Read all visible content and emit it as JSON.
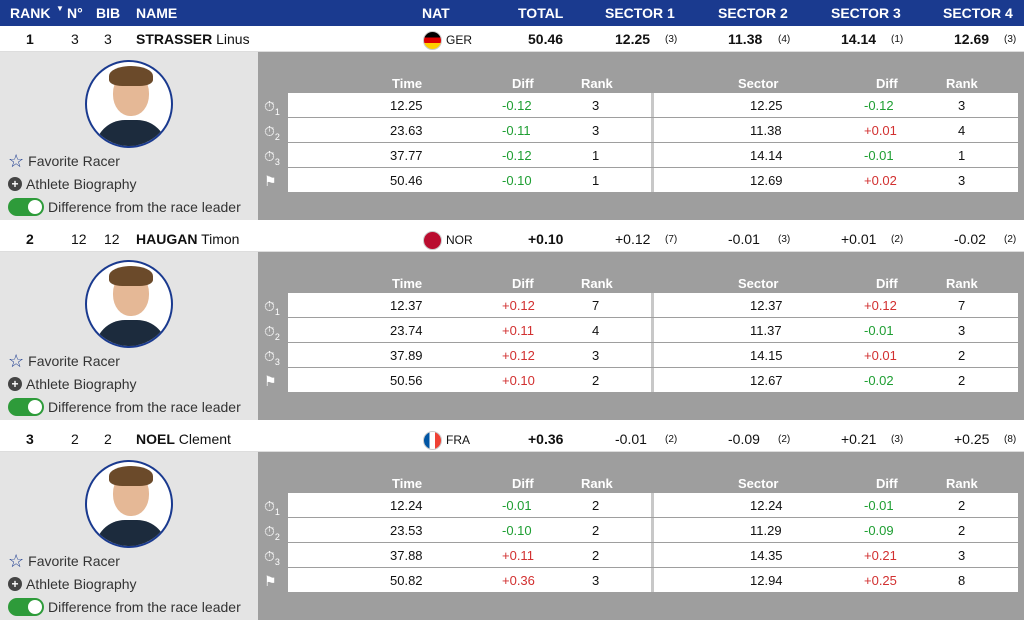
{
  "header": {
    "rank": "RANK",
    "no": "N°",
    "bib": "BIB",
    "name": "NAME",
    "nat": "NAT",
    "total": "TOTAL",
    "s1": "SECTOR 1",
    "s2": "SECTOR 2",
    "s3": "SECTOR 3",
    "s4": "SECTOR 4"
  },
  "links": {
    "fav": "Favorite Racer",
    "bio": "Athlete Biography",
    "diff": "Difference from the race leader"
  },
  "cols": {
    "time": "Time",
    "diff": "Diff",
    "rank": "Rank",
    "sector": "Sector",
    "diff2": "Diff",
    "rank2": "Rank"
  },
  "racers": [
    {
      "rank": "1",
      "no": "3",
      "bib": "3",
      "last": "STRASSER",
      "first": "Linus",
      "nat": "GER",
      "total": "50.46",
      "s1": "12.25",
      "s1r": "(3)",
      "s2": "11.38",
      "s2r": "(4)",
      "s3": "14.14",
      "s3r": "(1)",
      "s4": "12.69",
      "s4r": "(3)",
      "rows": [
        [
          "12.25",
          "-0.12",
          "3",
          "12.25",
          "-0.12",
          "3"
        ],
        [
          "23.63",
          "-0.11",
          "3",
          "11.38",
          "+0.01",
          "4"
        ],
        [
          "37.77",
          "-0.12",
          "1",
          "14.14",
          "-0.01",
          "1"
        ],
        [
          "50.46",
          "-0.10",
          "1",
          "12.69",
          "+0.02",
          "3"
        ]
      ]
    },
    {
      "rank": "2",
      "no": "12",
      "bib": "12",
      "last": "HAUGAN",
      "first": "Timon",
      "nat": "NOR",
      "total": "+0.10",
      "s1": "+0.12",
      "s1r": "(7)",
      "s2": "-0.01",
      "s2r": "(3)",
      "s3": "+0.01",
      "s3r": "(2)",
      "s4": "-0.02",
      "s4r": "(2)",
      "rows": [
        [
          "12.37",
          "+0.12",
          "7",
          "12.37",
          "+0.12",
          "7"
        ],
        [
          "23.74",
          "+0.11",
          "4",
          "11.37",
          "-0.01",
          "3"
        ],
        [
          "37.89",
          "+0.12",
          "3",
          "14.15",
          "+0.01",
          "2"
        ],
        [
          "50.56",
          "+0.10",
          "2",
          "12.67",
          "-0.02",
          "2"
        ]
      ]
    },
    {
      "rank": "3",
      "no": "2",
      "bib": "2",
      "last": "NOEL",
      "first": "Clement",
      "nat": "FRA",
      "total": "+0.36",
      "s1": "-0.01",
      "s1r": "(2)",
      "s2": "-0.09",
      "s2r": "(2)",
      "s3": "+0.21",
      "s3r": "(3)",
      "s4": "+0.25",
      "s4r": "(8)",
      "rows": [
        [
          "12.24",
          "-0.01",
          "2",
          "12.24",
          "-0.01",
          "2"
        ],
        [
          "23.53",
          "-0.10",
          "2",
          "11.29",
          "-0.09",
          "2"
        ],
        [
          "37.88",
          "+0.11",
          "2",
          "14.35",
          "+0.21",
          "3"
        ],
        [
          "50.82",
          "+0.36",
          "3",
          "12.94",
          "+0.25",
          "8"
        ]
      ]
    }
  ],
  "colors": {
    "header": "#1a3a8f",
    "negative": "#1e9e32",
    "positive": "#d23030"
  },
  "icons": [
    "stopwatch-1-icon",
    "stopwatch-2-icon",
    "stopwatch-3-icon",
    "finish-flag-icon"
  ]
}
